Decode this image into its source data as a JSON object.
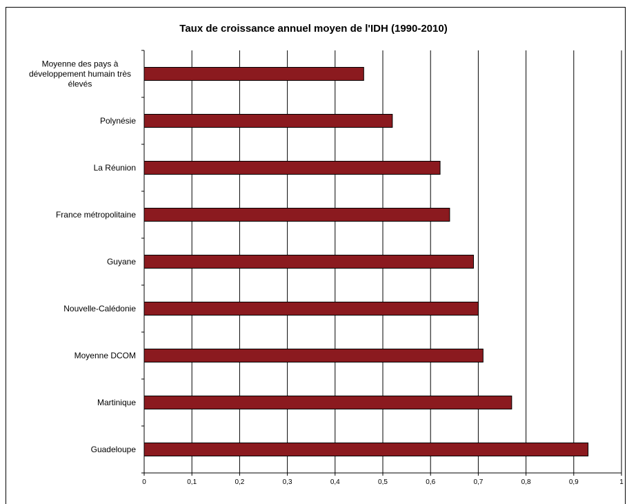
{
  "chart_data": {
    "type": "bar",
    "orientation": "horizontal",
    "title": "Taux de croissance annuel moyen de l'IDH (1990-2010)",
    "categories": [
      [
        "Moyenne des pays à",
        "développement humain très",
        "élevés"
      ],
      [
        "Polynésie"
      ],
      [
        "La Réunion"
      ],
      [
        "France métropolitaine"
      ],
      [
        "Guyane"
      ],
      [
        "Nouvelle-Calédonie"
      ],
      [
        "Moyenne DCOM"
      ],
      [
        "Martinique"
      ],
      [
        "Guadeloupe"
      ]
    ],
    "values": [
      0.46,
      0.52,
      0.62,
      0.64,
      0.69,
      0.7,
      0.71,
      0.77,
      0.93
    ],
    "xlim": [
      0,
      1
    ],
    "xticks": [
      "0",
      "0,1",
      "0,2",
      "0,3",
      "0,4",
      "0,5",
      "0,6",
      "0,7",
      "0,8",
      "0,9",
      "1"
    ],
    "grid": "vertical",
    "legend": "none",
    "bar_color": "#8b1a1f"
  }
}
